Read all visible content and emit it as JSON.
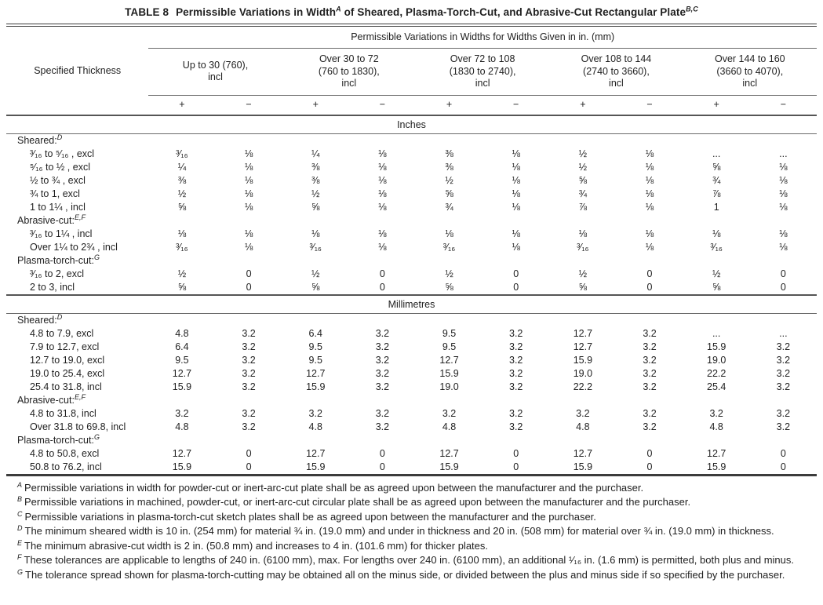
{
  "title": {
    "num": "TABLE 8",
    "part1": "Permissible Variations in Width",
    "sup1": "A",
    "part2": " of Sheared, Plasma-Torch-Cut, and Abrasive-Cut Rectangular Plate",
    "sup2": "B,C"
  },
  "header": {
    "col1": "Specified Thickness",
    "span": "Permissible Variations in Widths for Widths Given in in. (mm)",
    "plus": "+",
    "minus": "−",
    "groups": [
      "Up to 30 (760),\nincl",
      "Over 30 to 72\n(760 to 1830),\nincl",
      "Over 72 to 108\n(1830 to 2740),\nincl",
      "Over 108 to 144\n(2740 to 3660),\nincl",
      "Over 144 to 160\n(3660 to 4070),\nincl"
    ]
  },
  "sections": [
    {
      "label": "Inches",
      "rows": [
        {
          "group": "Sheared:",
          "sup": "D"
        },
        {
          "t": "³⁄₁₆ to ⁵⁄₁₆ , excl",
          "v": [
            "³⁄₁₆",
            "⅛",
            "¼",
            "⅛",
            "⅜",
            "⅛",
            "½",
            "⅛",
            "...",
            "..."
          ]
        },
        {
          "t": "⁵⁄₁₆ to ½ , excl",
          "v": [
            "¼",
            "⅛",
            "⅜",
            "⅛",
            "⅜",
            "⅛",
            "½",
            "⅛",
            "⅝",
            "⅛"
          ]
        },
        {
          "t": "½ to ¾ , excl",
          "v": [
            "⅜",
            "⅛",
            "⅜",
            "⅛",
            "½",
            "⅛",
            "⅝",
            "⅛",
            "¾",
            "⅛"
          ]
        },
        {
          "t": "¾ to 1, excl",
          "v": [
            "½",
            "⅛",
            "½",
            "⅛",
            "⅝",
            "⅛",
            "¾",
            "⅛",
            "⅞",
            "⅛"
          ]
        },
        {
          "t": "1 to 1¼ , incl",
          "v": [
            "⅝",
            "⅛",
            "⅝",
            "⅛",
            "¾",
            "⅛",
            "⅞",
            "⅛",
            "1",
            "⅛"
          ]
        },
        {
          "group": "Abrasive-cut:",
          "sup": "E,F"
        },
        {
          "t": "³⁄₁₆ to 1¼ , incl",
          "v": [
            "⅛",
            "⅛",
            "⅛",
            "⅛",
            "⅛",
            "⅛",
            "⅛",
            "⅛",
            "⅛",
            "⅛"
          ]
        },
        {
          "t": "Over 1¼  to 2¾ , incl",
          "v": [
            "³⁄₁₆",
            "⅛",
            "³⁄₁₆",
            "⅛",
            "³⁄₁₆",
            "⅛",
            "³⁄₁₆",
            "⅛",
            "³⁄₁₆",
            "⅛"
          ]
        },
        {
          "group": "Plasma-torch-cut:",
          "sup": "G"
        },
        {
          "t": "³⁄₁₆ to 2, excl",
          "v": [
            "½",
            "0",
            "½",
            "0",
            "½",
            "0",
            "½",
            "0",
            "½",
            "0"
          ]
        },
        {
          "t": "2 to 3, incl",
          "v": [
            "⅝",
            "0",
            "⅝",
            "0",
            "⅝",
            "0",
            "⅝",
            "0",
            "⅝",
            "0"
          ]
        }
      ]
    },
    {
      "label": "Millimetres",
      "rows": [
        {
          "group": "Sheared:",
          "sup": "D"
        },
        {
          "t": "4.8 to 7.9, excl",
          "v": [
            "4.8",
            "3.2",
            "6.4",
            "3.2",
            "9.5",
            "3.2",
            "12.7",
            "3.2",
            "...",
            "..."
          ]
        },
        {
          "t": "7.9 to 12.7, excl",
          "v": [
            "6.4",
            "3.2",
            "9.5",
            "3.2",
            "9.5",
            "3.2",
            "12.7",
            "3.2",
            "15.9",
            "3.2"
          ]
        },
        {
          "t": "12.7 to 19.0, excl",
          "v": [
            "9.5",
            "3.2",
            "9.5",
            "3.2",
            "12.7",
            "3.2",
            "15.9",
            "3.2",
            "19.0",
            "3.2"
          ]
        },
        {
          "t": "19.0 to 25.4, excl",
          "v": [
            "12.7",
            "3.2",
            "12.7",
            "3.2",
            "15.9",
            "3.2",
            "19.0",
            "3.2",
            "22.2",
            "3.2"
          ]
        },
        {
          "t": "25.4 to 31.8, incl",
          "v": [
            "15.9",
            "3.2",
            "15.9",
            "3.2",
            "19.0",
            "3.2",
            "22.2",
            "3.2",
            "25.4",
            "3.2"
          ]
        },
        {
          "group": "Abrasive-cut:",
          "sup": "E,F"
        },
        {
          "t": "4.8 to 31.8, incl",
          "v": [
            "3.2",
            "3.2",
            "3.2",
            "3.2",
            "3.2",
            "3.2",
            "3.2",
            "3.2",
            "3.2",
            "3.2"
          ]
        },
        {
          "t": "Over 31.8 to 69.8, incl",
          "v": [
            "4.8",
            "3.2",
            "4.8",
            "3.2",
            "4.8",
            "3.2",
            "4.8",
            "3.2",
            "4.8",
            "3.2"
          ]
        },
        {
          "group": "Plasma-torch-cut:",
          "sup": "G"
        },
        {
          "t": "4.8 to 50.8, excl",
          "v": [
            "12.7",
            "0",
            "12.7",
            "0",
            "12.7",
            "0",
            "12.7",
            "0",
            "12.7",
            "0"
          ]
        },
        {
          "t": "50.8 to 76.2, incl",
          "v": [
            "15.9",
            "0",
            "15.9",
            "0",
            "15.9",
            "0",
            "15.9",
            "0",
            "15.9",
            "0"
          ]
        }
      ]
    }
  ],
  "footnotes": [
    {
      "sup": "A",
      "text": "Permissible variations in width for powder-cut or inert-arc-cut plate shall be as agreed upon between the manufacturer and the purchaser."
    },
    {
      "sup": "B",
      "text": "Permissible variations in machined, powder-cut, or inert-arc-cut circular plate shall be as agreed upon between the manufacturer and the purchaser."
    },
    {
      "sup": "C",
      "text": "Permissible variations in plasma-torch-cut sketch plates shall be as agreed upon between the manufacturer and the purchaser."
    },
    {
      "sup": "D",
      "text": "The minimum sheared width is 10 in. (254 mm) for material ¾ in. (19.0 mm) and under in thickness and 20 in. (508 mm) for material over ¾  in. (19.0 mm) in thickness."
    },
    {
      "sup": "E",
      "text": "The minimum abrasive-cut width is 2 in. (50.8 mm) and increases to 4 in. (101.6 mm) for thicker plates."
    },
    {
      "sup": "F",
      "text": "These tolerances are applicable to lengths of 240 in. (6100 mm), max. For lengths over 240 in. (6100 mm), an additional ¹⁄₁₆  in. (1.6 mm) is permitted, both plus and minus."
    },
    {
      "sup": "G",
      "text": "The tolerance spread shown for plasma-torch-cutting may be obtained all on the minus side, or divided between the plus and minus side if so specified by the purchaser."
    }
  ]
}
